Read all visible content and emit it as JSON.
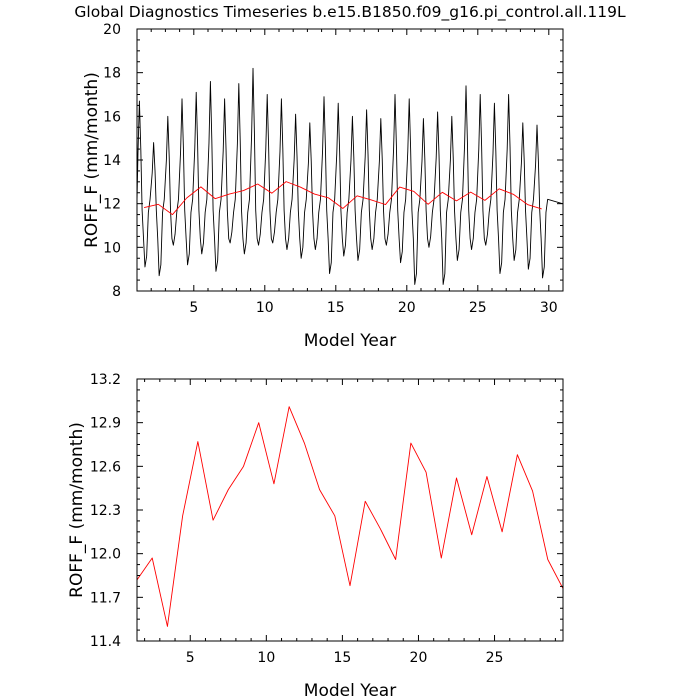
{
  "title": "Global Diagnostics Timeseries b.e15.B1850.f09_g16.pi_control.all.119L",
  "colors": {
    "monthly": "#000000",
    "annual": "#ff0000"
  },
  "chart_data": [
    {
      "type": "line",
      "xlabel": "Model Year",
      "ylabel": "ROFF_F (mm/month)",
      "xlim": [
        1,
        31
      ],
      "ylim": [
        8,
        20
      ],
      "xticks": [
        5,
        10,
        15,
        20,
        25,
        30
      ],
      "yticks": [
        8,
        10,
        12,
        14,
        16,
        18,
        20
      ],
      "xtick_labels": [
        "5",
        "10",
        "15",
        "20",
        "25",
        "30"
      ],
      "ytick_labels": [
        "8",
        "10",
        "12",
        "14",
        "16",
        "18",
        "20"
      ],
      "series": [
        {
          "style": "monthly",
          "color": "#000000",
          "peaks": [
            16.7,
            14.8,
            16.0,
            16.8,
            17.1,
            17.6,
            16.8,
            17.5,
            18.2,
            17.0,
            16.8,
            16.1,
            15.7,
            16.9,
            16.6,
            16.0,
            16.3,
            15.9,
            17.0,
            16.8,
            15.9,
            16.2,
            16.0,
            17.4,
            17.0,
            16.6,
            17.0,
            15.7,
            15.6
          ],
          "troughs": [
            9.1,
            8.7,
            10.1,
            9.2,
            9.7,
            8.9,
            10.2,
            9.7,
            10.1,
            10.2,
            9.9,
            9.5,
            9.9,
            8.8,
            9.6,
            9.4,
            9.9,
            10.1,
            9.3,
            8.3,
            10.0,
            8.3,
            9.4,
            9.9,
            10.1,
            8.8,
            9.4,
            9.0,
            8.6
          ]
        },
        {
          "style": "annual",
          "color": "#ff0000",
          "x": [
            1.5,
            2.5,
            3.5,
            4.5,
            5.5,
            6.5,
            7.5,
            8.5,
            9.5,
            10.5,
            11.5,
            12.5,
            13.5,
            14.5,
            15.5,
            16.5,
            17.5,
            18.5,
            19.5,
            20.5,
            21.5,
            22.5,
            23.5,
            24.5,
            25.5,
            26.5,
            27.5,
            28.5,
            29.5
          ],
          "y": [
            11.82,
            11.97,
            11.5,
            12.26,
            12.77,
            12.23,
            12.44,
            12.6,
            12.9,
            12.48,
            13.01,
            12.76,
            12.44,
            12.26,
            11.78,
            12.36,
            12.17,
            11.96,
            12.76,
            12.56,
            11.97,
            12.52,
            12.13,
            12.53,
            12.15,
            12.68,
            12.43,
            11.96,
            11.76
          ]
        }
      ]
    },
    {
      "type": "line",
      "xlabel": "Model Year",
      "ylabel": "ROFF_F (mm/month)",
      "xlim": [
        1.5,
        29.5
      ],
      "ylim": [
        11.4,
        13.2
      ],
      "xticks": [
        5,
        10,
        15,
        20,
        25
      ],
      "yticks": [
        11.4,
        11.7,
        12.0,
        12.3,
        12.6,
        12.9,
        13.2
      ],
      "xtick_labels": [
        "5",
        "10",
        "15",
        "20",
        "25"
      ],
      "ytick_labels": [
        "11.4",
        "11.7",
        "12.0",
        "12.3",
        "12.6",
        "12.9",
        "13.2"
      ],
      "series": [
        {
          "style": "annual",
          "color": "#ff0000",
          "x": [
            1.5,
            2.5,
            3.5,
            4.5,
            5.5,
            6.5,
            7.5,
            8.5,
            9.5,
            10.5,
            11.5,
            12.5,
            13.5,
            14.5,
            15.5,
            16.5,
            17.5,
            18.5,
            19.5,
            20.5,
            21.5,
            22.5,
            23.5,
            24.5,
            25.5,
            26.5,
            27.5,
            28.5,
            29.5
          ],
          "y": [
            11.82,
            11.97,
            11.5,
            12.26,
            12.77,
            12.23,
            12.44,
            12.6,
            12.9,
            12.48,
            13.01,
            12.76,
            12.44,
            12.26,
            11.78,
            12.36,
            12.17,
            11.96,
            12.76,
            12.56,
            11.97,
            12.52,
            12.13,
            12.53,
            12.15,
            12.68,
            12.43,
            11.96,
            11.76
          ]
        }
      ]
    }
  ]
}
